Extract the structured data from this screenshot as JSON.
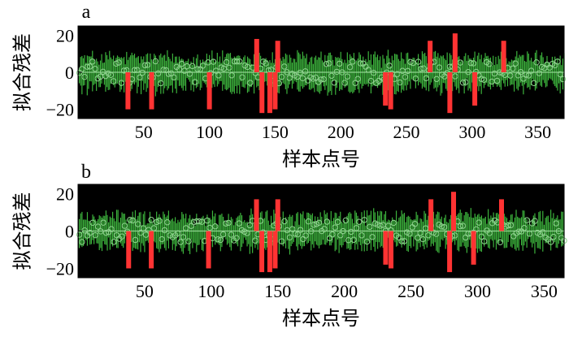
{
  "chart_data": [
    {
      "type": "scatter",
      "panel_label": "a",
      "title": "",
      "xlabel": "样本点号",
      "ylabel": "拟合残差",
      "xlim": [
        0,
        370
      ],
      "ylim": [
        -25,
        25
      ],
      "xticks": [
        50,
        100,
        150,
        200,
        250,
        300,
        350
      ],
      "yticks": [
        20,
        0,
        -20
      ],
      "ytick_labels": [
        "20",
        "0",
        "−20"
      ],
      "background_color": "#000000",
      "residual_color": "#3cb23c",
      "marker_color": "#8fd38f",
      "outlier_color": "#ff3333",
      "n_samples": 370,
      "residual_amplitude": 11,
      "outliers": [
        {
          "x": 38,
          "y": -20
        },
        {
          "x": 56,
          "y": -20
        },
        {
          "x": 100,
          "y": -20
        },
        {
          "x": 136,
          "y": 18
        },
        {
          "x": 140,
          "y": -22
        },
        {
          "x": 146,
          "y": -22
        },
        {
          "x": 150,
          "y": -20
        },
        {
          "x": 152,
          "y": 17
        },
        {
          "x": 234,
          "y": -18
        },
        {
          "x": 238,
          "y": -20
        },
        {
          "x": 268,
          "y": 17
        },
        {
          "x": 283,
          "y": -22
        },
        {
          "x": 287,
          "y": 21
        },
        {
          "x": 302,
          "y": -18
        },
        {
          "x": 324,
          "y": 17
        }
      ]
    },
    {
      "type": "scatter",
      "panel_label": "b",
      "title": "",
      "xlabel": "样本点号",
      "ylabel": "拟合残差",
      "xlim": [
        0,
        365
      ],
      "ylim": [
        -25,
        25
      ],
      "xticks": [
        50,
        100,
        150,
        200,
        250,
        300,
        350
      ],
      "yticks": [
        20,
        0,
        -20
      ],
      "ytick_labels": [
        "20",
        "0",
        "−20"
      ],
      "background_color": "#000000",
      "residual_color": "#3cb23c",
      "marker_color": "#8fd38f",
      "outlier_color": "#ff3333",
      "n_samples": 365,
      "residual_amplitude": 11,
      "outliers": [
        {
          "x": 38,
          "y": -20
        },
        {
          "x": 55,
          "y": -20
        },
        {
          "x": 98,
          "y": -20
        },
        {
          "x": 134,
          "y": 17
        },
        {
          "x": 138,
          "y": -22
        },
        {
          "x": 144,
          "y": -22
        },
        {
          "x": 148,
          "y": -20
        },
        {
          "x": 150,
          "y": 17
        },
        {
          "x": 231,
          "y": -18
        },
        {
          "x": 235,
          "y": -20
        },
        {
          "x": 265,
          "y": 17
        },
        {
          "x": 279,
          "y": -22
        },
        {
          "x": 282,
          "y": 21
        },
        {
          "x": 297,
          "y": -18
        },
        {
          "x": 318,
          "y": 17
        }
      ]
    }
  ]
}
